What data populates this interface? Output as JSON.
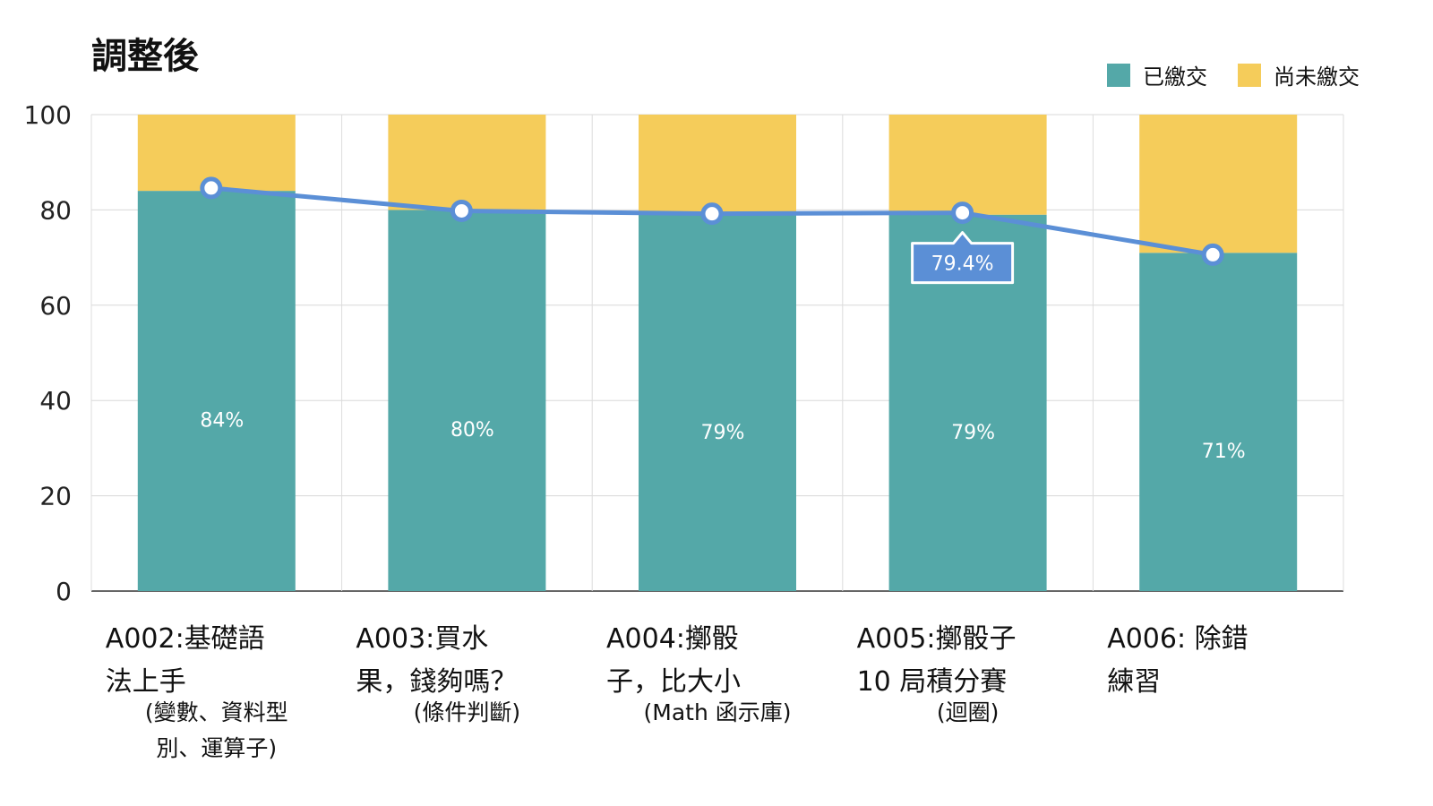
{
  "chart_data": {
    "type": "bar",
    "stacked": true,
    "title": "調整後",
    "categories": [
      {
        "line1": "A002:基礎語",
        "line2": "法上手",
        "sub1": "(變數、資料型",
        "sub2": "別、運算子)"
      },
      {
        "line1": "A003:買水",
        "line2": "果，錢夠嗎？",
        "sub1": "(條件判斷)",
        "sub2": ""
      },
      {
        "line1": "A004:擲骰",
        "line2": "子，比大小",
        "sub1": "(Math 函示庫)",
        "sub2": ""
      },
      {
        "line1": "A005:擲骰子",
        "line2": "10 局積分賽",
        "sub1": "(迴圈)",
        "sub2": ""
      },
      {
        "line1": "A006: 除錯",
        "line2": "練習",
        "sub1": "",
        "sub2": ""
      }
    ],
    "series": [
      {
        "name": "已繳交",
        "color": "#54a8a8",
        "values": [
          84,
          80,
          79,
          79,
          71
        ],
        "labels": [
          "84%",
          "80%",
          "79%",
          "79%",
          "71%"
        ]
      },
      {
        "name": "尚未繳交",
        "color": "#f5cc5a",
        "values": [
          16,
          20,
          21,
          21,
          29
        ]
      }
    ],
    "line": {
      "color": "#5b8fd6",
      "values": [
        84.6,
        79.8,
        79.2,
        79.4,
        70.6
      ]
    },
    "tooltip": {
      "index": 3,
      "text": "79.4%"
    },
    "yticks": [
      "0",
      "20",
      "40",
      "60",
      "80",
      "100"
    ],
    "ylim": [
      0,
      100
    ],
    "grid": true,
    "legend_position": "top-right"
  }
}
